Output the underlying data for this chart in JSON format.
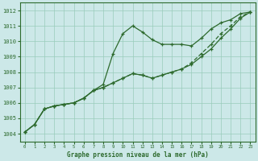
{
  "title": "Graphe pression niveau de la mer (hPa)",
  "bg_color": "#cce8e8",
  "grid_color": "#99ccbb",
  "line_color": "#2d6a2d",
  "xlim": [
    -0.5,
    23.5
  ],
  "ylim": [
    1003.5,
    1012.5
  ],
  "xticks": [
    0,
    1,
    2,
    3,
    4,
    5,
    6,
    7,
    8,
    9,
    10,
    11,
    12,
    13,
    14,
    15,
    16,
    17,
    18,
    19,
    20,
    21,
    22,
    23
  ],
  "yticks": [
    1004,
    1005,
    1006,
    1007,
    1008,
    1009,
    1010,
    1011,
    1012
  ],
  "series1_x": [
    0,
    1,
    2,
    3,
    4,
    5,
    6,
    7,
    8,
    9,
    10,
    11,
    12,
    13,
    14,
    15,
    16,
    17,
    18,
    19,
    20,
    21,
    22,
    23
  ],
  "series1_y": [
    1004.1,
    1004.6,
    1005.6,
    1005.8,
    1005.9,
    1006.0,
    1006.3,
    1006.8,
    1007.2,
    1009.2,
    1010.5,
    1011.0,
    1010.6,
    1010.1,
    1009.8,
    1009.8,
    1009.8,
    1009.7,
    1010.2,
    1010.8,
    1011.2,
    1011.4,
    1011.8,
    1011.9
  ],
  "series2_x": [
    0,
    1,
    2,
    3,
    4,
    5,
    6,
    7,
    8,
    9,
    10,
    11,
    12,
    13,
    14,
    15,
    16,
    17,
    18,
    19,
    20,
    21,
    22,
    23
  ],
  "series2_y": [
    1004.1,
    1004.6,
    1005.6,
    1005.8,
    1005.9,
    1006.0,
    1006.3,
    1006.8,
    1007.0,
    1007.3,
    1007.6,
    1007.9,
    1007.8,
    1007.6,
    1007.8,
    1008.0,
    1008.2,
    1008.5,
    1009.0,
    1009.5,
    1010.2,
    1010.8,
    1011.5,
    1011.9
  ],
  "series3_x": [
    0,
    1,
    2,
    3,
    4,
    5,
    6,
    7,
    8,
    9,
    10,
    11,
    12,
    13,
    14,
    15,
    16,
    17,
    18,
    19,
    20,
    21,
    22,
    23
  ],
  "series3_y": [
    1004.1,
    1004.6,
    1005.6,
    1005.8,
    1005.9,
    1006.0,
    1006.3,
    1006.8,
    1007.0,
    1007.3,
    1007.6,
    1007.9,
    1007.8,
    1007.6,
    1007.8,
    1008.0,
    1008.2,
    1008.6,
    1009.2,
    1009.8,
    1010.5,
    1011.0,
    1011.6,
    1011.9
  ]
}
